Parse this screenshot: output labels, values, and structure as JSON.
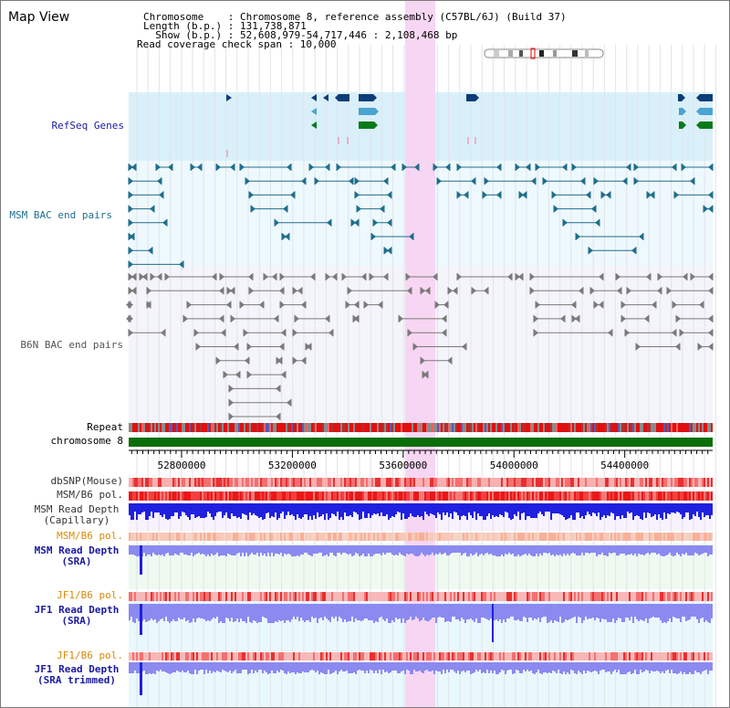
{
  "view_title": "Map View",
  "info": {
    "chromosome_label": "Chromosome    : Chromosome 8, reference assembly (C57BL/6J) (Build 37)",
    "length_label": "Length (b.p.) : 131,738,871",
    "show_label": "  Show (b.p.) : 52,608,979-54,717,446 : 2,108,468 bp",
    "span_label": "Read coverage check span : 10,000"
  },
  "tracks": {
    "refseq": "RefSeq Genes",
    "msm_bac": "MSM BAC end pairs",
    "b6n_bac": "B6N BAC end pairs",
    "repeat": "Repeat",
    "chromosome": "chromosome 8",
    "dbsnp": "dbSNP(Mouse)",
    "msm_b6_pol_1": "MSM/B6 pol.",
    "msm_depth_cap_1": "MSM Read Depth",
    "msm_depth_cap_2": "(Capillary)",
    "msm_b6_pol_2": "MSM/B6 pol.",
    "msm_depth_sra_1": "MSM Read Depth",
    "msm_depth_sra_2": "(SRA)",
    "jf1_b6_pol_1": "JF1/B6 pol.",
    "jf1_depth_sra_1": "JF1 Read Depth",
    "jf1_depth_sra_2": "(SRA)",
    "jf1_b6_pol_2": "JF1/B6 pol.",
    "jf1_depth_trim_1": "JF1 Read Depth",
    "jf1_depth_trim_2": "(SRA trimmed)"
  },
  "axis": {
    "ticks": [
      "52800000",
      "53200000",
      "53600000",
      "54000000",
      "54400000"
    ],
    "tick_values": [
      52800000,
      53200000,
      53600000,
      54000000,
      54400000
    ],
    "range": [
      52608979,
      54717446
    ]
  },
  "colors": {
    "highlight": "#f7d6f3",
    "refseq_bg": "#d9f0fa",
    "pair_bg": "#eef9fd",
    "gene_blue": "#0d3d78",
    "gene_light": "#4aa3d0",
    "gene_green": "#0a7a1a",
    "msm_bac": "#1e6e8c",
    "b6n_bac": "#7a7a7a",
    "chrom_green": "#0a6e0a",
    "depth_blue": "#2020e0",
    "depth_sra": "#8a8af0",
    "label_blue": "#1a1aa0",
    "label_orange": "#d88a0a"
  }
}
